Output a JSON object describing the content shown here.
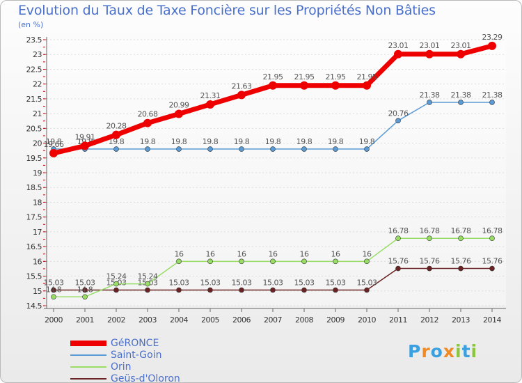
{
  "chart_data": {
    "type": "line",
    "title": "Evolution du Taux de Taxe Foncière sur les Propriétés Non Bâties",
    "ylabel": "(en %)",
    "xlabel": "",
    "categories": [
      "2000",
      "2001",
      "2002",
      "2003",
      "2004",
      "2005",
      "2006",
      "2007",
      "2008",
      "2009",
      "2010",
      "2011",
      "2012",
      "2013",
      "2014"
    ],
    "ylim": [
      14.5,
      23.5
    ],
    "yticks": [
      "14.5",
      "15",
      "15.5",
      "16",
      "16.5",
      "17",
      "17.5",
      "18",
      "18.5",
      "19",
      "19.5",
      "20",
      "20.5",
      "21",
      "21.5",
      "22",
      "22.5",
      "23",
      "23.5"
    ],
    "series": [
      {
        "name": "GéRONCE",
        "color": "#ee0000",
        "values": [
          19.66,
          19.91,
          20.28,
          20.68,
          20.99,
          21.31,
          21.63,
          21.95,
          21.95,
          21.95,
          21.95,
          23.01,
          23.01,
          23.01,
          23.29
        ],
        "labels": [
          "19.66",
          "19.91",
          "20.28",
          "20.68",
          "20.99",
          "21.31",
          "21.63",
          "21.95",
          "21.95",
          "21.95",
          "21.95",
          "23.01",
          "23.01",
          "23.01",
          "23.29"
        ]
      },
      {
        "name": "Saint-Goin",
        "color": "#5b9bd5",
        "values": [
          19.8,
          19.8,
          19.8,
          19.8,
          19.8,
          19.8,
          19.8,
          19.8,
          19.8,
          19.8,
          19.8,
          20.76,
          21.38,
          21.38,
          21.38
        ],
        "labels": [
          "19.8",
          "19.8",
          "19.8",
          "19.8",
          "19.8",
          "19.8",
          "19.8",
          "19.8",
          "19.8",
          "19.8",
          "19.8",
          "20.76",
          "21.38",
          "21.38",
          "21.38"
        ]
      },
      {
        "name": "Orin",
        "color": "#99dd66",
        "values": [
          14.8,
          14.8,
          15.24,
          15.24,
          16,
          16,
          16,
          16,
          16,
          16,
          16,
          16.78,
          16.78,
          16.78,
          16.78
        ],
        "labels": [
          "14.8",
          "14.8",
          "15.24",
          "15.24",
          "16",
          "16",
          "16",
          "16",
          "16",
          "16",
          "16",
          "16.78",
          "16.78",
          "16.78",
          "16.78"
        ]
      },
      {
        "name": "Geüs-d'Oloron",
        "color": "#6b2222",
        "values": [
          15.03,
          15.03,
          15.03,
          15.03,
          15.03,
          15.03,
          15.03,
          15.03,
          15.03,
          15.03,
          15.03,
          15.76,
          15.76,
          15.76,
          15.76
        ],
        "labels": [
          "15.03",
          "15.03",
          "15.03",
          "15.03",
          "15.03",
          "15.03",
          "15.03",
          "15.03",
          "15.03",
          "15.03",
          "15.03",
          "15.76",
          "15.76",
          "15.76",
          "15.76"
        ]
      }
    ]
  },
  "logo": {
    "letters": [
      "P",
      "r",
      "o",
      "x",
      "i",
      "t",
      "i"
    ],
    "colors": [
      "#3aa0e0",
      "#f08a24",
      "#3aa0e0",
      "#f08a24",
      "#8cc63f",
      "#3aa0e0",
      "#8cc63f"
    ]
  }
}
